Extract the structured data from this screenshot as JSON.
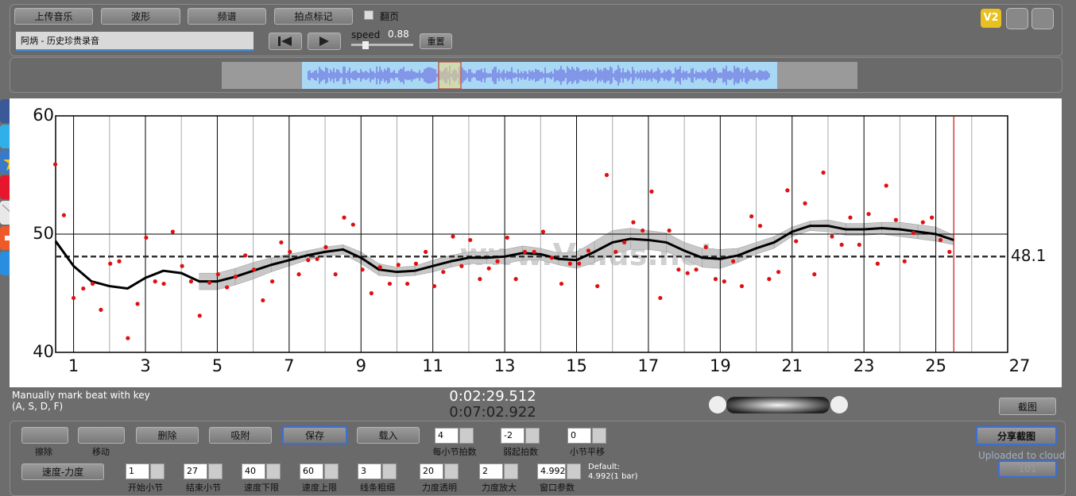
{
  "toolbar": {
    "upload": "上传音乐",
    "waveform": "波形",
    "spectrum": "频谱",
    "beat_mark": "拍点标记",
    "page_flip": "翻页",
    "version": "V2",
    "song": "阿炳 - 历史珍贵录音",
    "speed_label": "speed",
    "speed": 0.88,
    "reset": "重置"
  },
  "chart_data": {
    "type": "scatter",
    "watermark": "www.Vmus.net",
    "xlim": [
      0.5,
      27
    ],
    "ylim": [
      40,
      60
    ],
    "xticks": [
      1,
      3,
      5,
      7,
      9,
      11,
      13,
      15,
      17,
      19,
      21,
      23,
      25,
      27
    ],
    "minor_xticks": [
      2,
      4,
      6,
      8,
      10,
      12,
      14,
      16,
      18,
      20,
      22,
      24,
      26
    ],
    "yticks": [
      40,
      50,
      60
    ],
    "grid": true,
    "points": {
      "color": "#e01010",
      "x": [
        0.49,
        0.73,
        1.0,
        1.27,
        1.53,
        1.76,
        2.02,
        2.27,
        2.51,
        2.78,
        3.02,
        3.27,
        3.51,
        3.76,
        4.02,
        4.27,
        4.51,
        4.78,
        5.02,
        5.27,
        5.51,
        5.78,
        6.02,
        6.27,
        6.53,
        6.78,
        7.02,
        7.27,
        7.53,
        7.78,
        8.02,
        8.29,
        8.53,
        8.78,
        9.04,
        9.29,
        9.53,
        9.8,
        10.04,
        10.29,
        10.53,
        10.8,
        11.04,
        11.29,
        11.56,
        11.8,
        12.04,
        12.31,
        12.56,
        12.8,
        13.07,
        13.31,
        13.56,
        13.82,
        14.07,
        14.31,
        14.58,
        14.82,
        15.07,
        15.33,
        15.58,
        15.84,
        16.09,
        16.33,
        16.58,
        16.84,
        17.09,
        17.33,
        17.58,
        17.84,
        18.09,
        18.33,
        18.6,
        18.87,
        19.11,
        19.36,
        19.6,
        19.87,
        20.11,
        20.36,
        20.62,
        20.87,
        21.11,
        21.36,
        21.62,
        21.87,
        22.11,
        22.38,
        22.62,
        22.87,
        23.13,
        23.38,
        23.62,
        23.89,
        24.13,
        24.38,
        24.64,
        24.89,
        25.13,
        25.38
      ],
      "y": [
        55.9,
        51.6,
        44.6,
        45.4,
        45.8,
        43.6,
        47.5,
        47.7,
        41.2,
        44.1,
        49.7,
        46.0,
        45.8,
        50.2,
        47.3,
        46.0,
        43.1,
        45.9,
        46.6,
        45.5,
        46.4,
        48.2,
        47.0,
        44.4,
        46.0,
        49.3,
        48.5,
        46.6,
        47.8,
        47.9,
        48.9,
        46.6,
        51.4,
        50.8,
        47.0,
        45.0,
        47.2,
        45.8,
        47.4,
        45.8,
        47.5,
        48.5,
        45.6,
        46.8,
        49.8,
        47.3,
        49.5,
        46.2,
        47.1,
        47.7,
        49.7,
        46.2,
        48.5,
        48.5,
        50.2,
        48.0,
        45.8,
        47.5,
        47.5,
        48.6,
        45.6,
        55.0,
        48.5,
        49.3,
        51.0,
        50.3,
        53.6,
        44.6,
        50.3,
        47.0,
        46.7,
        47.0,
        48.9,
        46.2,
        46.0,
        47.7,
        45.6,
        51.5,
        50.7,
        46.2,
        46.8,
        53.7,
        49.4,
        52.6,
        46.6,
        55.2,
        49.8,
        49.1,
        51.4,
        49.1,
        51.7,
        47.5,
        54.1,
        51.2,
        47.7,
        50.1,
        51.0,
        51.4,
        49.5,
        48.5
      ]
    },
    "trend": {
      "color": "#000000",
      "x": [
        0.5,
        1,
        1.5,
        2,
        2.5,
        3,
        3.5,
        4,
        4.5,
        5,
        5.5,
        6,
        6.5,
        7,
        7.5,
        8,
        8.5,
        9,
        9.5,
        10,
        10.5,
        11,
        11.5,
        12,
        12.5,
        13,
        13.5,
        14,
        14.5,
        15,
        15.5,
        16,
        16.5,
        17,
        17.5,
        18,
        18.5,
        19,
        19.5,
        20,
        20.5,
        21,
        21.5,
        22,
        22.5,
        23,
        23.5,
        24,
        24.5,
        25,
        25.5
      ],
      "y": [
        49.4,
        47.3,
        46.0,
        45.6,
        45.4,
        46.3,
        46.9,
        46.7,
        46.0,
        46.0,
        46.4,
        46.9,
        47.4,
        47.8,
        48.2,
        48.5,
        48.7,
        48.0,
        47.0,
        46.8,
        46.9,
        47.3,
        47.7,
        48.0,
        48.0,
        48.1,
        48.4,
        48.3,
        47.9,
        47.8,
        48.5,
        49.3,
        49.6,
        49.5,
        49.3,
        48.6,
        48.0,
        47.9,
        48.2,
        48.8,
        49.3,
        50.2,
        50.7,
        50.7,
        50.4,
        50.4,
        50.5,
        50.4,
        50.2,
        50.0,
        49.5
      ]
    },
    "band": {
      "color": "#c8c8c8",
      "lower": [
        null,
        null,
        null,
        null,
        null,
        null,
        null,
        null,
        45.3,
        45.3,
        45.7,
        46.2,
        46.8,
        47.3,
        47.8,
        48.1,
        48.3,
        47.5,
        46.5,
        46.4,
        46.5,
        46.8,
        47.2,
        47.5,
        47.5,
        47.5,
        47.8,
        47.8,
        47.4,
        47.1,
        47.6,
        48.3,
        48.7,
        48.7,
        48.5,
        47.9,
        47.2,
        47.1,
        47.6,
        48.3,
        48.8,
        49.8,
        50.3,
        50.2,
        49.9,
        49.9,
        50.0,
        49.8,
        49.6,
        49.4,
        49.1
      ],
      "upper": [
        null,
        null,
        null,
        null,
        null,
        null,
        null,
        null,
        46.7,
        46.7,
        47.1,
        47.6,
        48.0,
        48.3,
        48.6,
        48.9,
        49.1,
        48.5,
        47.5,
        47.2,
        47.3,
        47.8,
        48.2,
        48.5,
        48.5,
        48.7,
        49.0,
        48.8,
        48.4,
        48.5,
        49.4,
        50.3,
        50.5,
        50.3,
        50.1,
        49.3,
        48.8,
        48.7,
        48.8,
        49.3,
        49.8,
        50.6,
        51.1,
        51.2,
        50.9,
        50.9,
        51.0,
        51.0,
        50.8,
        50.6,
        49.9
      ]
    },
    "mean": {
      "value": 48.1,
      "color": "#333333"
    },
    "marker": {
      "x": 25.5,
      "color": "#d01010"
    }
  },
  "status": {
    "hint": "Manually mark beat with key",
    "keys": "(A, S, D, F)",
    "current_time": "0:02:29.512",
    "total_time": "0:07:02.922",
    "screenshot": "截图"
  },
  "controls": {
    "erase": "擦除",
    "move": "移动",
    "delete": "删除",
    "snap": "吸附",
    "save": "保存",
    "load": "载入",
    "tempo_dynamics": "速度-力度",
    "share": "分享截图",
    "uploaded": "Uploaded to cloud",
    "share_id": "101",
    "default_label": "Default:",
    "default_value": "4.992(1 bar)",
    "fields": [
      {
        "value": 4,
        "label": "每小节拍数"
      },
      {
        "value": -2,
        "label": "弱起拍数"
      },
      {
        "value": 0,
        "label": "小节平移"
      },
      {
        "value": 1,
        "label": "开始小节"
      },
      {
        "value": 27,
        "label": "结束小节"
      },
      {
        "value": 40,
        "label": "速度下限"
      },
      {
        "value": 60,
        "label": "速度上限"
      },
      {
        "value": 3,
        "label": "线条粗细"
      },
      {
        "value": 20,
        "label": "力度透明"
      },
      {
        "value": 2,
        "label": "力度放大"
      },
      {
        "value": 4.992,
        "label": "窗口参数"
      }
    ]
  }
}
